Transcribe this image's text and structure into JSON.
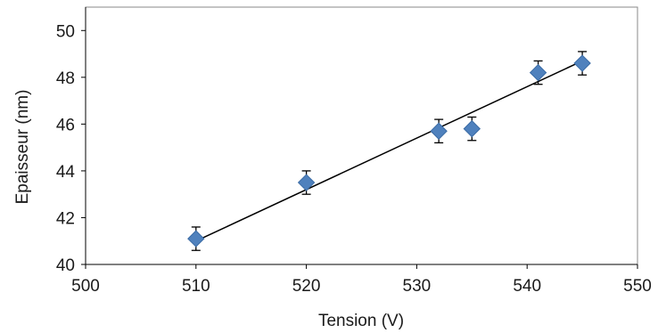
{
  "chart_data": {
    "type": "scatter",
    "title": "",
    "xlabel": "Tension (V)",
    "ylabel": "Epaisseur (nm)",
    "xlim": [
      500,
      550
    ],
    "ylim": [
      40,
      51
    ],
    "xticks": [
      500,
      510,
      520,
      530,
      540,
      550
    ],
    "yticks": [
      40,
      42,
      44,
      46,
      48,
      50
    ],
    "grid": false,
    "legend": "none",
    "marker": "diamond",
    "colors": {
      "marker": "#4F81BD",
      "marker_edge": "#3A6BA5",
      "trendline": "#000000",
      "error_bar": "#000000",
      "axis": "#000000"
    },
    "series": [
      {
        "x": [
          510,
          520,
          532,
          535,
          541,
          545
        ],
        "y": [
          41.1,
          43.5,
          45.7,
          45.8,
          48.2,
          48.6
        ],
        "error": [
          0.5,
          0.5,
          0.5,
          0.5,
          0.5,
          0.5
        ]
      }
    ],
    "trendline": {
      "type": "linear",
      "x": [
        510,
        545
      ],
      "y": [
        41.0,
        48.7
      ]
    }
  }
}
